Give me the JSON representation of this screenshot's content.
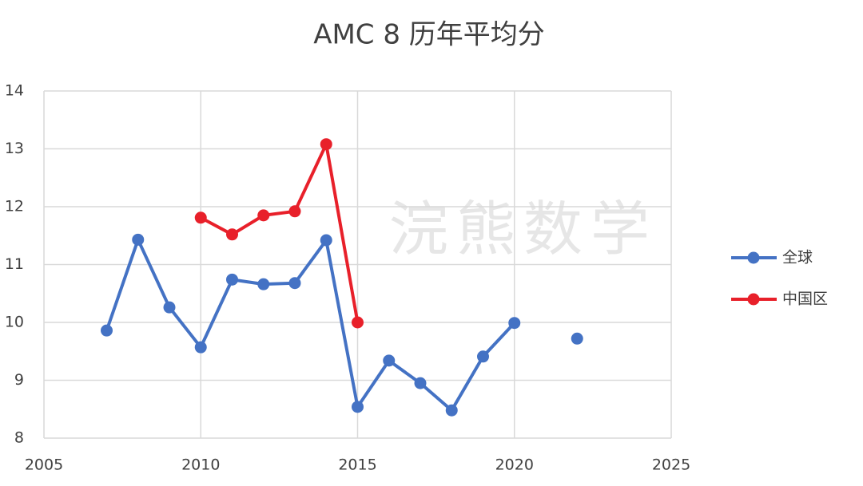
{
  "chart_data": {
    "type": "line",
    "title": "AMC 8 历年平均分",
    "watermark": "浣熊数学",
    "series": [
      {
        "name": "全球",
        "color": "#4472c4",
        "x": [
          2007,
          2008,
          2009,
          2010,
          2011,
          2012,
          2013,
          2014,
          2015,
          2016,
          2017,
          2018,
          2019,
          2020,
          2021,
          2022
        ],
        "values": [
          9.86,
          11.43,
          10.26,
          9.57,
          10.74,
          10.66,
          10.68,
          11.42,
          8.54,
          9.34,
          8.95,
          8.48,
          9.41,
          9.99,
          null,
          9.72
        ]
      },
      {
        "name": "中国区",
        "color": "#e8202a",
        "x": [
          2010,
          2011,
          2012,
          2013,
          2014,
          2015
        ],
        "values": [
          11.81,
          11.52,
          11.85,
          11.92,
          13.08,
          10.0
        ]
      }
    ],
    "xlim": [
      2005,
      2025
    ],
    "xticks": [
      2005,
      2010,
      2015,
      2020,
      2025
    ],
    "ylim": [
      8,
      14
    ],
    "yticks": [
      8,
      9,
      10,
      11,
      12,
      13,
      14
    ],
    "grid": true,
    "legend": "right"
  }
}
